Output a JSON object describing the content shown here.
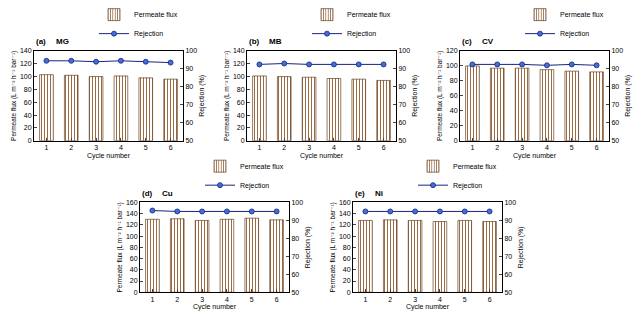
{
  "chart_data": [
    {
      "type": "bar",
      "subtitle": "(a)",
      "title": "MG",
      "x_label": "Cycle number",
      "y_label": "Permeate flux (L m⁻² h⁻¹ bar⁻¹)",
      "y2_label": "Rejection (%)",
      "categories": [
        "1",
        "2",
        "3",
        "4",
        "5",
        "6"
      ],
      "series": [
        {
          "name": "Permeate flux",
          "type": "bar",
          "color": "#f07c1e",
          "values": [
            103,
            102,
            100,
            101,
            98,
            96
          ]
        },
        {
          "name": "Rejection",
          "type": "line",
          "axis": "y2",
          "color": "#1a237e",
          "marker": "circle",
          "values": [
            94.5,
            94.5,
            94,
            94.5,
            94,
            93.5
          ]
        }
      ],
      "ylim": [
        0,
        140
      ],
      "yticks": [
        0,
        20,
        40,
        60,
        80,
        100,
        120,
        140
      ],
      "y2lim": [
        50,
        100
      ],
      "y2ticks": [
        50,
        60,
        70,
        80,
        90,
        100
      ],
      "grid": false,
      "legend": "top right"
    },
    {
      "type": "bar",
      "subtitle": "(b)",
      "title": "MB",
      "x_label": "Cycle number",
      "y_label": "Permeate flux (L m⁻² h⁻¹ bar⁻¹)",
      "y2_label": "Rejection (%)",
      "categories": [
        "1",
        "2",
        "3",
        "4",
        "5",
        "6"
      ],
      "series": [
        {
          "name": "Permeate flux",
          "type": "bar",
          "color": "#f07c1e",
          "values": [
            101,
            100,
            99,
            97,
            96,
            94
          ]
        },
        {
          "name": "Rejection",
          "type": "line",
          "axis": "y2",
          "color": "#1a237e",
          "marker": "circle",
          "values": [
            92.5,
            93,
            92.5,
            92.5,
            92.5,
            92.5
          ]
        }
      ],
      "ylim": [
        0,
        140
      ],
      "yticks": [
        0,
        20,
        40,
        60,
        80,
        100,
        120,
        140
      ],
      "y2lim": [
        50,
        100
      ],
      "y2ticks": [
        50,
        60,
        70,
        80,
        90,
        100
      ],
      "grid": false,
      "legend": "top right"
    },
    {
      "type": "bar",
      "subtitle": "(c)",
      "title": "CV",
      "x_label": "Cycle number",
      "y_label": "Permeate flux (L m⁻² h⁻¹ bar⁻¹)",
      "y2_label": "Rejection (%)",
      "categories": [
        "1",
        "2",
        "3",
        "4",
        "5",
        "6"
      ],
      "series": [
        {
          "name": "Permeate flux",
          "type": "bar",
          "color": "#f07c1e",
          "values": [
            100,
            97,
            97,
            95,
            93,
            92
          ]
        },
        {
          "name": "Rejection",
          "type": "line",
          "axis": "y2",
          "color": "#1a237e",
          "marker": "circle",
          "values": [
            92.5,
            92.5,
            92.5,
            92,
            92.5,
            92
          ]
        }
      ],
      "ylim": [
        0,
        120
      ],
      "yticks": [
        0,
        20,
        40,
        60,
        80,
        100,
        120
      ],
      "y2lim": [
        50,
        100
      ],
      "y2ticks": [
        50,
        60,
        70,
        80,
        90,
        100
      ],
      "grid": false,
      "legend": "top right"
    },
    {
      "type": "bar",
      "subtitle": "(d)",
      "title": "Cu",
      "x_label": "Cycle number",
      "y_label": "Permeate flux (L m⁻² h⁻¹ bar⁻¹)",
      "y2_label": "Rejection (%)",
      "categories": [
        "1",
        "2",
        "3",
        "4",
        "5",
        "6"
      ],
      "series": [
        {
          "name": "Permeate flux",
          "type": "bar",
          "color": "#f07c1e",
          "values": [
            130,
            131,
            128,
            130,
            132,
            129
          ]
        },
        {
          "name": "Rejection",
          "type": "line",
          "axis": "y2",
          "color": "#1a237e",
          "marker": "circle",
          "values": [
            95.5,
            95,
            95,
            95,
            95,
            95
          ]
        }
      ],
      "ylim": [
        0,
        160
      ],
      "yticks": [
        0,
        20,
        40,
        60,
        80,
        100,
        120,
        140,
        160
      ],
      "y2lim": [
        50,
        100
      ],
      "y2ticks": [
        50,
        60,
        70,
        80,
        90,
        100
      ],
      "grid": false,
      "legend": "top right"
    },
    {
      "type": "bar",
      "subtitle": "(e)",
      "title": "Ni",
      "x_label": "Cycle number",
      "y_label": "Permeate flux (L m⁻² h⁻¹ bar⁻¹)",
      "y2_label": "Rejection (%)",
      "categories": [
        "1",
        "2",
        "3",
        "4",
        "5",
        "6"
      ],
      "series": [
        {
          "name": "Permeate flux",
          "type": "bar",
          "color": "#f07c1e",
          "values": [
            128,
            129,
            128,
            126,
            128,
            126
          ]
        },
        {
          "name": "Rejection",
          "type": "line",
          "axis": "y2",
          "color": "#1a237e",
          "marker": "circle",
          "values": [
            95,
            95,
            95,
            95,
            95,
            95
          ]
        }
      ],
      "ylim": [
        0,
        160
      ],
      "yticks": [
        0,
        20,
        40,
        60,
        80,
        100,
        120,
        140,
        160
      ],
      "y2lim": [
        50,
        100
      ],
      "y2ticks": [
        50,
        60,
        70,
        80,
        90,
        100
      ],
      "grid": false,
      "legend": "top right"
    }
  ]
}
